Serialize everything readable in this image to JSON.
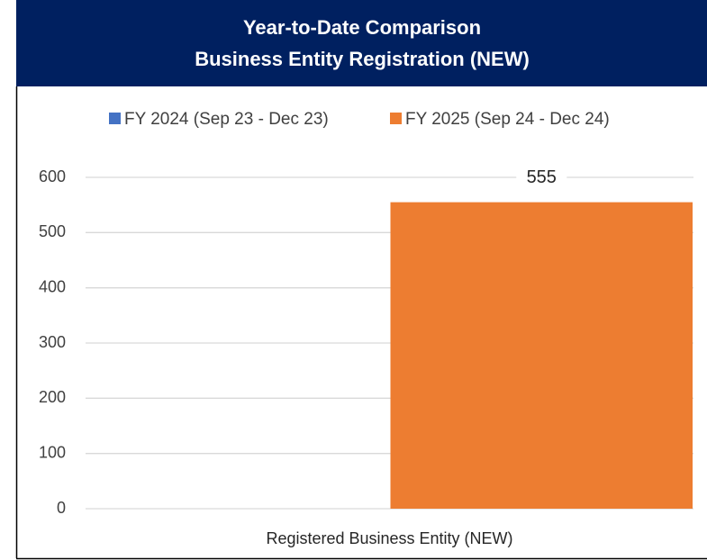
{
  "chart_data": {
    "type": "bar",
    "title": "Year-to-Date Comparison",
    "subtitle": "Business Entity Registration (NEW)",
    "categories": [
      "Registered Business Entity (NEW)"
    ],
    "series": [
      {
        "name": "FY 2024 (Sep 23 - Dec 23)",
        "color": "#4472c4",
        "values": [
          null
        ]
      },
      {
        "name": "FY 2025 (Sep 24 - Dec 24)",
        "color": "#ed7d31",
        "values": [
          555
        ]
      }
    ],
    "ylim": [
      0,
      600
    ],
    "yticks": [
      0,
      100,
      200,
      300,
      400,
      500,
      600
    ],
    "grid": true,
    "legend": "top",
    "header_color": "#002060"
  }
}
